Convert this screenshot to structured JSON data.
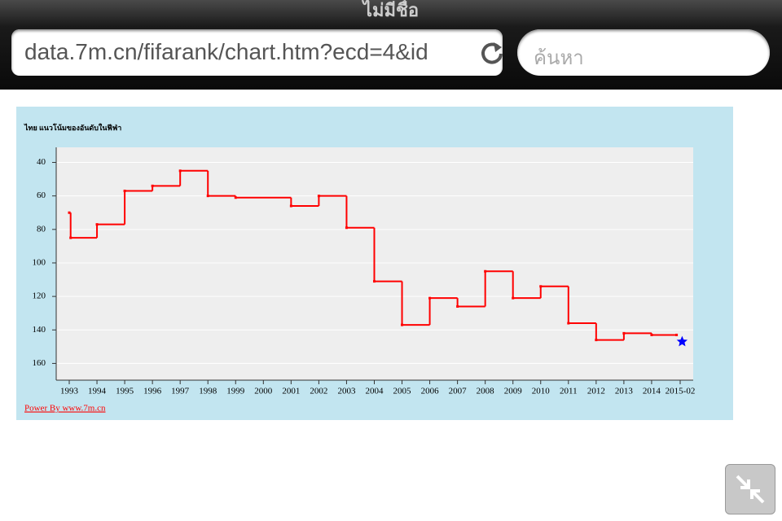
{
  "browser": {
    "title": "ไม่มีชื่อ",
    "url": "data.7m.cn/fifarank/chart.htm?ecd=4&id",
    "search_placeholder": "ค้นหา"
  },
  "chart_data": {
    "type": "step",
    "title": "ไทย แนวโน้มของอันดับในฟีฟ่า",
    "series": [
      {
        "color": "#ff0000",
        "marker": "dot",
        "x": [
          1993,
          1993.05,
          1994,
          1995,
          1996,
          1997,
          1998,
          1999,
          2001,
          2002,
          2003,
          2004,
          2005,
          2006,
          2007,
          2008,
          2009,
          2010,
          2011,
          2012,
          2013,
          2014,
          2014.9
        ],
        "values": [
          70,
          85,
          77,
          57,
          54,
          45,
          60,
          61,
          66,
          60,
          79,
          111,
          137,
          121,
          126,
          105,
          121,
          114,
          136,
          146,
          142,
          143,
          143
        ]
      },
      {
        "color": "#0000ff",
        "marker": "star",
        "x": [
          2015.1
        ],
        "values": [
          147
        ]
      }
    ],
    "xlim": [
      1992.53,
      2015.5
    ],
    "xticks": [
      1993,
      1994,
      1995,
      1996,
      1997,
      1998,
      1999,
      2000,
      2001,
      2002,
      2003,
      2004,
      2005,
      2006,
      2007,
      2008,
      2009,
      2010,
      2011,
      2012,
      2013,
      2014,
      {
        "value": 2015.03,
        "label": "2015-02"
      }
    ],
    "ylim": [
      170,
      31
    ],
    "yticks": [
      40,
      60,
      80,
      100,
      120,
      140,
      160
    ],
    "grid": true,
    "footer": "Power By www.7m.cn"
  }
}
